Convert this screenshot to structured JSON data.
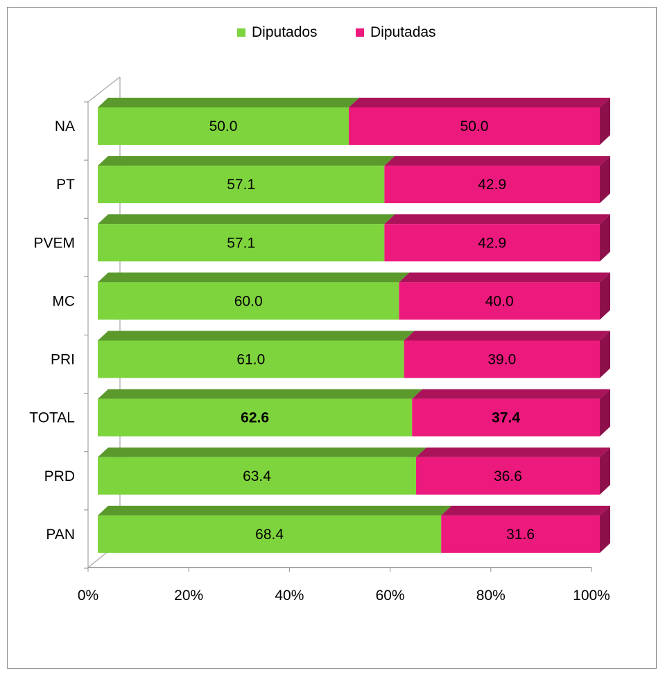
{
  "chart_data": {
    "type": "bar",
    "orientation": "horizontal",
    "stacked": "percent",
    "categories": [
      "NA",
      "PT",
      "PVEM",
      "MC",
      "PRI",
      "TOTAL",
      "PRD",
      "PAN"
    ],
    "series": [
      {
        "name": "Diputados",
        "color": "#7ed43d",
        "values": [
          50.0,
          57.1,
          57.1,
          60.0,
          61.0,
          62.6,
          63.4,
          68.4
        ],
        "labels": [
          "50.0",
          "57.1",
          "57.1",
          "60.0",
          "61.0",
          "62.6",
          "63.4",
          "68.4"
        ]
      },
      {
        "name": "Diputadas",
        "color": "#ec1a7d",
        "values": [
          50.0,
          42.9,
          42.9,
          40.0,
          39.0,
          37.4,
          36.6,
          31.6
        ],
        "labels": [
          "50.0",
          "42.9",
          "42.9",
          "40.0",
          "39.0",
          "37.4",
          "36.6",
          "31.6"
        ]
      }
    ],
    "bold_category": "TOTAL",
    "xlim": [
      0,
      100
    ],
    "x_ticks": [
      "0%",
      "20%",
      "40%",
      "60%",
      "80%",
      "100%"
    ],
    "legend_position": "top",
    "grid": false,
    "style": "3d"
  }
}
